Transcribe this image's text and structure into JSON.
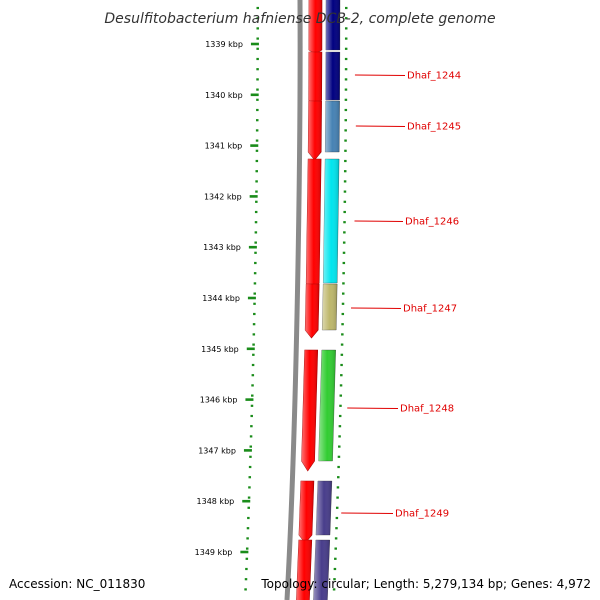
{
  "title": "Desulfitobacterium hafniense DCB-2, complete genome",
  "accession": "Accession: NC_011830",
  "summary": "Topology: circular; Length: 5,279,134 bp; Genes: 4,972",
  "colors": {
    "tick": "#1a8c1a",
    "label": "#e00000",
    "backbone": "#8a8a8a",
    "cds": "#ff0000"
  },
  "kbp_marks": [
    "1339 kbp",
    "1340 kbp",
    "1341 kbp",
    "1342 kbp",
    "1343 kbp",
    "1344 kbp",
    "1345 kbp",
    "1346 kbp",
    "1347 kbp",
    "1348 kbp",
    "1349 kbp"
  ],
  "genes": [
    {
      "label": "",
      "color": "#000080"
    },
    {
      "label": "Dhaf_1244",
      "color": "#000080"
    },
    {
      "label": "Dhaf_1245",
      "color": "#4682b4"
    },
    {
      "label": "Dhaf_1246",
      "color": "#00e5ee"
    },
    {
      "label": "Dhaf_1247",
      "color": "#bdb76b"
    },
    {
      "label": "Dhaf_1248",
      "color": "#32cd32"
    },
    {
      "label": "Dhaf_1249",
      "color": "#483d8b"
    },
    {
      "label": "",
      "color": "#483d8b"
    }
  ]
}
